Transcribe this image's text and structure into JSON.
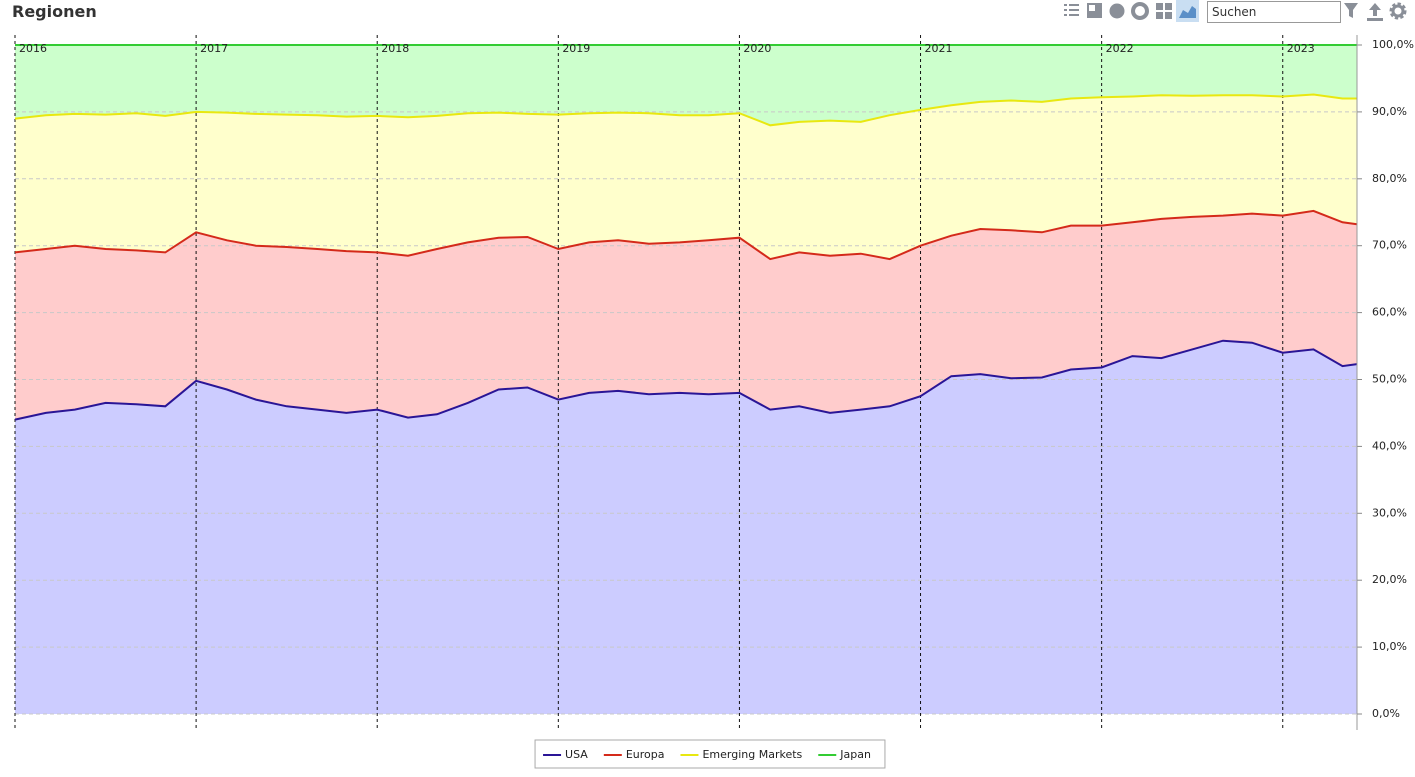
{
  "header": {
    "title": "Regionen",
    "search_placeholder": "Suchen"
  },
  "chart_data": {
    "type": "stacked_area",
    "x": [
      2016,
      2016.17,
      2016.33,
      2016.5,
      2016.67,
      2016.83,
      2017,
      2017.17,
      2017.33,
      2017.5,
      2017.67,
      2017.83,
      2018,
      2018.17,
      2018.33,
      2018.5,
      2018.67,
      2018.83,
      2019,
      2019.17,
      2019.33,
      2019.5,
      2019.67,
      2019.83,
      2020,
      2020.17,
      2020.33,
      2020.5,
      2020.67,
      2020.83,
      2021,
      2021.17,
      2021.33,
      2021.5,
      2021.67,
      2021.83,
      2022,
      2022.17,
      2022.33,
      2022.5,
      2022.67,
      2022.83,
      2023,
      2023.17,
      2023.33,
      2023.41
    ],
    "xlim": [
      2016,
      2023.41
    ],
    "xticks": [
      2016,
      2017,
      2018,
      2019,
      2020,
      2021,
      2022,
      2023
    ],
    "ylim": [
      0,
      100
    ],
    "yticks": [
      {
        "value": 0,
        "label": "0,0%"
      },
      {
        "value": 10,
        "label": "10,0%"
      },
      {
        "value": 20,
        "label": "20,0%"
      },
      {
        "value": 30,
        "label": "30,0%"
      },
      {
        "value": 40,
        "label": "40,0%"
      },
      {
        "value": 50,
        "label": "50,0%"
      },
      {
        "value": 60,
        "label": "60,0%"
      },
      {
        "value": 70,
        "label": "70,0%"
      },
      {
        "value": 80,
        "label": "80,0%"
      },
      {
        "value": 90,
        "label": "90,0%"
      },
      {
        "value": 100,
        "label": "100,0%"
      }
    ],
    "grid": true,
    "legend": "bottom",
    "series": [
      {
        "name": "USA",
        "color": "#2a1596",
        "fill_color": "#ccccff",
        "values": [
          44,
          45,
          45.5,
          46.5,
          46.3,
          46,
          49.8,
          48.5,
          47,
          46,
          45.5,
          45,
          45.5,
          44.3,
          44.8,
          46.5,
          48.5,
          48.8,
          47,
          48,
          48.3,
          47.8,
          48,
          47.8,
          48,
          45.5,
          46,
          45,
          45.5,
          46,
          47.5,
          50.5,
          50.8,
          50.2,
          50.3,
          51.5,
          51.8,
          53.5,
          53.2,
          54.5,
          55.8,
          55.5,
          54,
          54.5,
          52,
          52.3
        ]
      },
      {
        "name": "Europa",
        "color": "#d42a1a",
        "fill_color": "#ffcccc",
        "values": [
          25,
          24.5,
          24.5,
          23,
          23,
          23,
          22.2,
          22.3,
          23,
          23.8,
          24,
          24.2,
          23.5,
          24.2,
          24.7,
          24,
          22.7,
          22.5,
          22.5,
          22.5,
          22.5,
          22.5,
          22.5,
          23,
          23.2,
          22.5,
          23,
          23.5,
          23.3,
          22,
          22.5,
          21,
          21.7,
          22.1,
          21.7,
          21.5,
          21.2,
          20,
          20.8,
          19.8,
          18.7,
          19.3,
          20.5,
          20.7,
          21.5,
          20.9
        ]
      },
      {
        "name": "Emerging Markets",
        "color": "#e8e810",
        "fill_color": "#ffffcc",
        "values": [
          20,
          20,
          19.7,
          20.1,
          20.5,
          20.4,
          18,
          19.1,
          19.7,
          19.8,
          20,
          20.1,
          20.4,
          20.7,
          19.9,
          19.3,
          18.7,
          18.4,
          20.1,
          19.3,
          19.1,
          19.5,
          19,
          18.7,
          18.6,
          20,
          19.5,
          20.2,
          19.7,
          21.5,
          20.3,
          19.5,
          19,
          19.4,
          19.5,
          19,
          19.2,
          18.8,
          18.5,
          18.1,
          18,
          17.7,
          17.8,
          17.4,
          18.5,
          18.8
        ]
      },
      {
        "name": "Japan",
        "color": "#33cc33",
        "fill_color": "#ccffcc",
        "values": [
          11,
          10.5,
          10.3,
          10.4,
          10.2,
          10.6,
          10,
          10.1,
          10.3,
          10.4,
          10.5,
          10.7,
          10.6,
          10.8,
          10.6,
          10.2,
          10.1,
          10.3,
          10.4,
          10.2,
          10.1,
          10.2,
          10.5,
          10.5,
          10.2,
          12,
          11.5,
          11.3,
          11.5,
          10.5,
          9.7,
          9,
          8.5,
          8.3,
          8.5,
          8,
          7.8,
          7.7,
          7.5,
          7.6,
          7.5,
          7.5,
          7.7,
          7.4,
          8,
          8
        ]
      }
    ]
  }
}
